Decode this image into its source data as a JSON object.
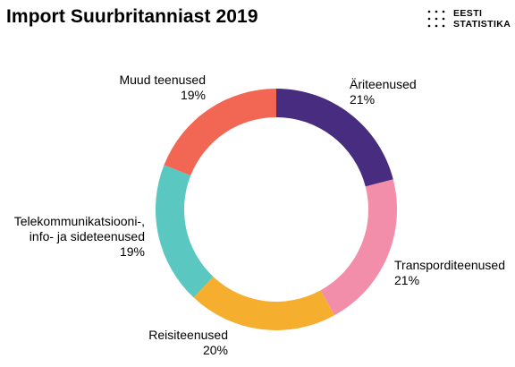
{
  "header": {
    "title": "Import Suurbritanniast 2019",
    "logo_line1": "EESTI",
    "logo_line2": "STATISTIKA"
  },
  "chart_data": {
    "type": "pie",
    "donut": true,
    "title": "Import Suurbritanniast 2019",
    "slices": [
      {
        "name": "Äriteenused",
        "value": 21,
        "label": "21%",
        "color": "#472C7F"
      },
      {
        "name": "Transporditeenused",
        "value": 21,
        "label": "21%",
        "color": "#F28EAA"
      },
      {
        "name": "Reisiteenused",
        "value": 20,
        "label": "20%",
        "color": "#F5AE2E"
      },
      {
        "name": "Telekommunikatsiooni-, info- ja sideteenused",
        "name_lines": [
          "Telekommunikatsiooni-,",
          "info- ja sideteenused"
        ],
        "value": 19,
        "label": "19%",
        "color": "#5BC7C1"
      },
      {
        "name": "Muud teenused",
        "value": 19,
        "label": "19%",
        "color": "#F26654"
      }
    ]
  }
}
